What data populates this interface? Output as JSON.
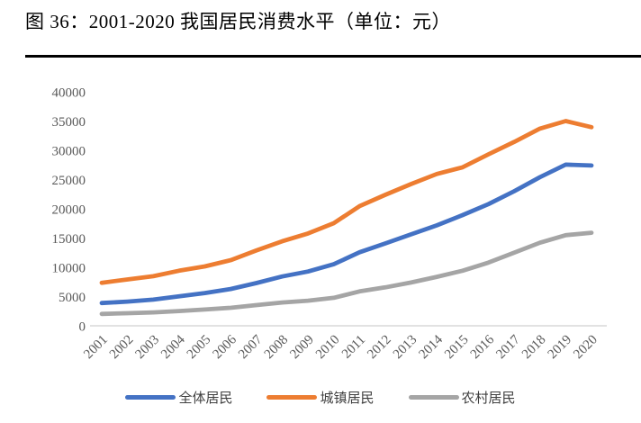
{
  "header": {
    "title": "图 36：2001-2020 我国居民消费水平（单位：元）"
  },
  "colors": {
    "axis_text": "#595959",
    "axis_line": "#d9d9d9",
    "title_text": "#000000",
    "series_all": "#4472C4",
    "series_urban": "#ED7D31",
    "series_rural": "#A5A5A5"
  },
  "chart_data": {
    "type": "line",
    "title": "图 36：2001-2020 我国居民消费水平（单位：元）",
    "xlabel": "",
    "ylabel": "",
    "unit": "元",
    "ylim": [
      0,
      40000
    ],
    "ytick_step": 5000,
    "yticks": [
      0,
      5000,
      10000,
      15000,
      20000,
      25000,
      30000,
      35000,
      40000
    ],
    "grid": false,
    "legend_position": "bottom",
    "x": [
      2001,
      2002,
      2003,
      2004,
      2005,
      2006,
      2007,
      2008,
      2009,
      2010,
      2011,
      2012,
      2013,
      2014,
      2015,
      2016,
      2017,
      2018,
      2019,
      2020
    ],
    "series": [
      {
        "key": "all-residents",
        "name": "全体居民",
        "color": "#4472C4",
        "values": [
          3890,
          4140,
          4480,
          5030,
          5600,
          6300,
          7310,
          8430,
          9280,
          10520,
          12570,
          14080,
          15630,
          17170,
          18930,
          20800,
          23000,
          25400,
          27550,
          27400
        ]
      },
      {
        "key": "urban-residents",
        "name": "城镇居民",
        "color": "#ED7D31",
        "values": [
          7350,
          7920,
          8470,
          9420,
          10150,
          11220,
          12870,
          14440,
          15790,
          17540,
          20440,
          22380,
          24230,
          25960,
          27090,
          29300,
          31430,
          33700,
          35000,
          33950
        ]
      },
      {
        "key": "rural-residents",
        "name": "农村居民",
        "color": "#A5A5A5",
        "values": [
          2030,
          2160,
          2290,
          2520,
          2780,
          3070,
          3540,
          3980,
          4300,
          4780,
          5880,
          6570,
          7400,
          8370,
          9410,
          10800,
          12500,
          14200,
          15500,
          15900
        ]
      }
    ]
  }
}
